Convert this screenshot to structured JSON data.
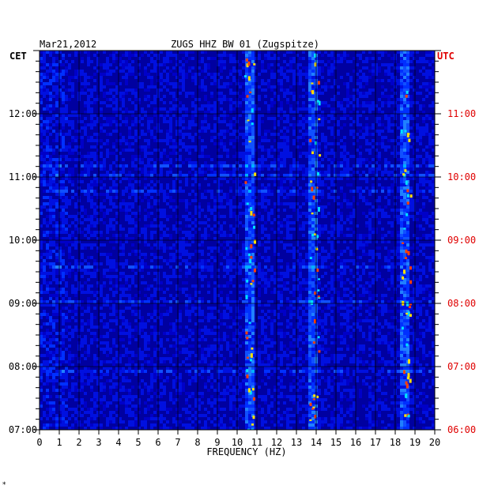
{
  "chart_data": {
    "type": "heatmap",
    "title": "ZUGS HHZ BW 01 (Zugspitze)",
    "date": "Mar21,2012",
    "left_tz": "CET",
    "right_tz": "UTC",
    "xlabel": "FREQUENCY (HZ)",
    "xlim": [
      0,
      20
    ],
    "x_ticks": [
      "0",
      "1",
      "2",
      "3",
      "4",
      "5",
      "6",
      "7",
      "8",
      "9",
      "10",
      "11",
      "12",
      "13",
      "14",
      "15",
      "16",
      "17",
      "18",
      "19",
      "20"
    ],
    "y_cet_ticks": [
      "07:00",
      "08:00",
      "09:00",
      "10:00",
      "11:00",
      "12:00"
    ],
    "y_utc_ticks": [
      "06:00",
      "07:00",
      "08:00",
      "09:00",
      "10:00",
      "11:00"
    ],
    "ylim_cet_hours": [
      7,
      13
    ],
    "colors": {
      "background_low": "#0000a0",
      "mid": "#1040ff",
      "high": "#00e0ff",
      "peak": "#ffe000",
      "max": "#ff4000",
      "utc_label": "#e00000"
    },
    "features": [
      {
        "label": "persistent band",
        "freq_hz": 10.6
      },
      {
        "label": "persistent band",
        "freq_hz": 13.9
      },
      {
        "label": "intermittent band",
        "freq_hz": 18.5
      }
    ]
  },
  "footer_mark": "*"
}
